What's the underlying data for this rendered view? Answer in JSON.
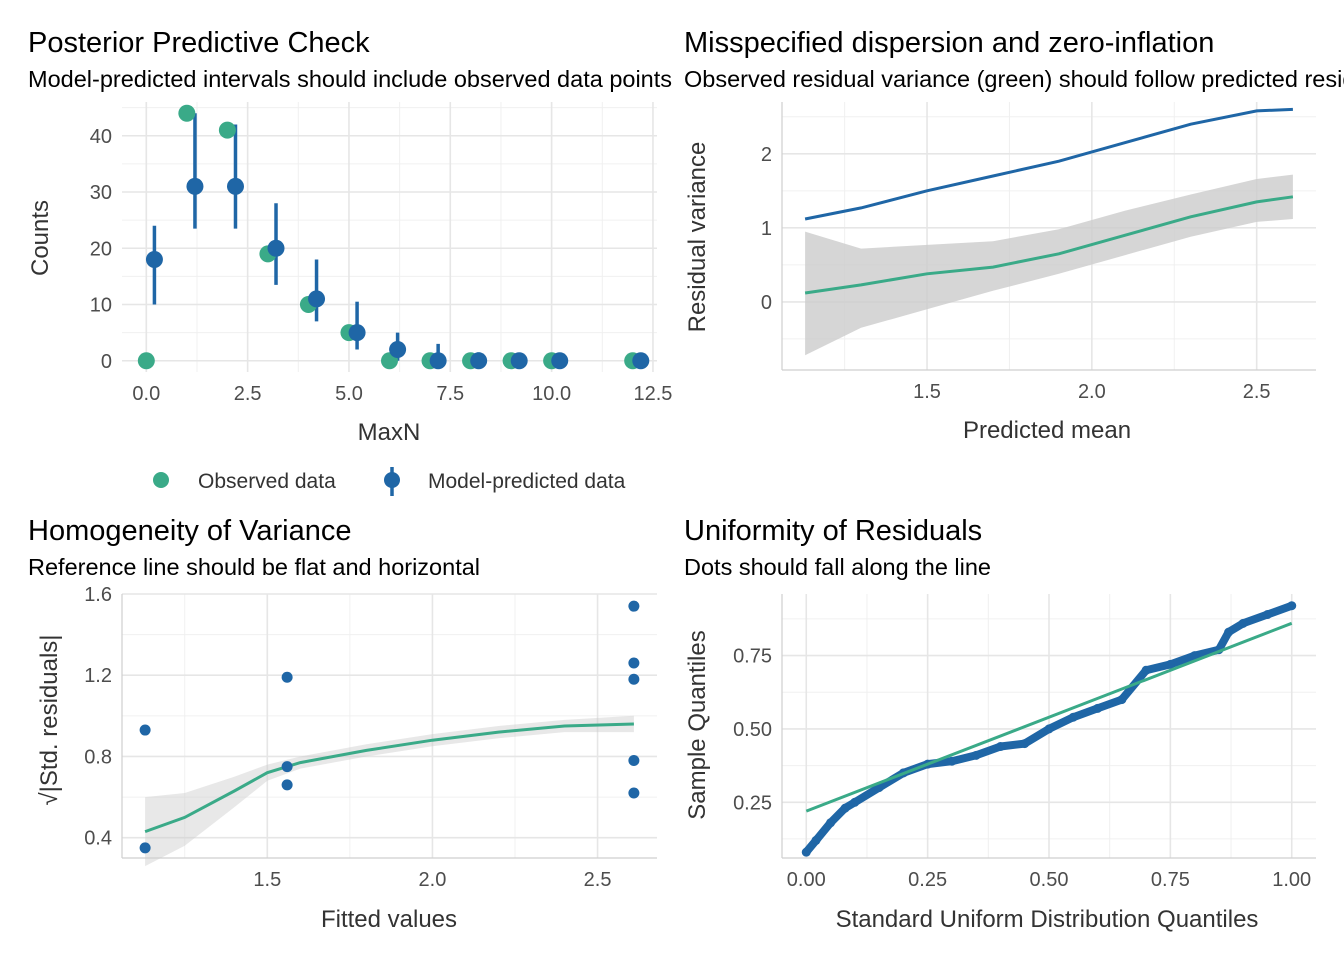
{
  "colors": {
    "observed": "#3aaa88",
    "predicted": "#1f66a6",
    "ci_band": "#cccccc"
  },
  "chart_data": [
    {
      "type": "scatter",
      "panel": "top-left",
      "title": "Posterior Predictive Check",
      "subtitle": "Model-predicted intervals should include observed data points",
      "xlabel": "MaxN",
      "ylabel": "Counts",
      "xlim": [
        -0.6,
        12.6
      ],
      "ylim": [
        -2,
        46
      ],
      "xticks": [
        0,
        2.5,
        5,
        7.5,
        10,
        12.5
      ],
      "xtick_labels": [
        "0.0",
        "2.5",
        "5.0",
        "7.5",
        "10.0",
        "12.5"
      ],
      "yticks": [
        0,
        10,
        20,
        30,
        40
      ],
      "ytick_labels": [
        "0",
        "10",
        "20",
        "30",
        "40"
      ],
      "grid": true,
      "legend": [
        "Observed data",
        "Model-predicted data"
      ],
      "legend_position": "bottom",
      "observed": {
        "name": "Observed data",
        "x": [
          0,
          1,
          2,
          3,
          4,
          5,
          6,
          7,
          8,
          9,
          10,
          12
        ],
        "y": [
          0,
          44,
          41,
          19,
          10,
          5,
          0,
          0,
          0,
          0,
          0,
          0
        ]
      },
      "predicted": {
        "name": "Model-predicted data",
        "x": [
          0.2,
          1.2,
          2.2,
          3.2,
          4.2,
          5.2,
          6.2,
          7.2,
          8.2,
          9.2,
          10.2,
          12.2
        ],
        "y": [
          18,
          31,
          31,
          20,
          11,
          5,
          2,
          0,
          0,
          0,
          0,
          0
        ],
        "lower": [
          10,
          23.5,
          23.5,
          13.5,
          7,
          2,
          0,
          0,
          0,
          0,
          0,
          0
        ],
        "upper": [
          24,
          44,
          42,
          28,
          18,
          10.5,
          5,
          3,
          1.5,
          1,
          1,
          1
        ]
      }
    },
    {
      "type": "line",
      "panel": "top-right",
      "title": "Misspecified dispersion and zero-inflation",
      "subtitle": "Observed residual variance (green) should follow predicted residual variance (blue).",
      "xlabel": "Predicted mean",
      "ylabel": "Residual variance",
      "xlim": [
        1.06,
        2.68
      ],
      "ylim": [
        -0.92,
        2.7
      ],
      "xticks": [
        1.5,
        2.0,
        2.5
      ],
      "xtick_labels": [
        "1.5",
        "2.0",
        "2.5"
      ],
      "yticks": [
        0,
        1,
        2
      ],
      "ytick_labels": [
        "0",
        "1",
        "2"
      ],
      "grid": true,
      "predicted_variance": {
        "x": [
          1.13,
          1.3,
          1.5,
          1.7,
          1.9,
          2.1,
          2.3,
          2.5,
          2.61
        ],
        "y": [
          1.12,
          1.27,
          1.5,
          1.7,
          1.9,
          2.15,
          2.4,
          2.58,
          2.6
        ]
      },
      "observed_variance": {
        "x": [
          1.13,
          1.3,
          1.5,
          1.7,
          1.9,
          2.1,
          2.3,
          2.5,
          2.61
        ],
        "y": [
          0.12,
          0.23,
          0.38,
          0.47,
          0.65,
          0.9,
          1.15,
          1.35,
          1.42
        ]
      },
      "ci_band": {
        "x": [
          1.13,
          1.3,
          1.5,
          1.7,
          1.9,
          2.1,
          2.3,
          2.5,
          2.61
        ],
        "lower": [
          -0.72,
          -0.35,
          -0.1,
          0.15,
          0.38,
          0.63,
          0.88,
          1.08,
          1.12
        ],
        "upper": [
          0.95,
          0.72,
          0.77,
          0.82,
          0.98,
          1.23,
          1.45,
          1.66,
          1.72
        ]
      }
    },
    {
      "type": "scatter",
      "panel": "bottom-left",
      "title": "Homogeneity of Variance",
      "subtitle": "Reference line should be flat and horizontal",
      "xlabel": "Fitted values",
      "ylabel": "√|Std. residuals|",
      "xlim": [
        1.06,
        2.68
      ],
      "ylim": [
        0.3,
        1.6
      ],
      "xticks": [
        1.5,
        2.0,
        2.5
      ],
      "xtick_labels": [
        "1.5",
        "2.0",
        "2.5"
      ],
      "yticks": [
        0.4,
        0.8,
        1.2,
        1.6
      ],
      "ytick_labels": [
        "0.4",
        "0.8",
        "1.2",
        "1.6"
      ],
      "grid": true,
      "points": {
        "x": [
          1.13,
          1.13,
          1.56,
          1.56,
          1.56,
          2.61,
          2.61,
          2.61,
          2.61,
          2.61
        ],
        "y": [
          0.35,
          0.93,
          1.19,
          0.75,
          0.66,
          1.54,
          1.26,
          1.18,
          0.78,
          0.62
        ]
      },
      "smooth": {
        "x": [
          1.13,
          1.25,
          1.4,
          1.5,
          1.6,
          1.8,
          2.0,
          2.2,
          2.4,
          2.61
        ],
        "y": [
          0.43,
          0.5,
          0.63,
          0.72,
          0.77,
          0.83,
          0.88,
          0.92,
          0.95,
          0.96
        ]
      },
      "ci_band": {
        "x": [
          1.13,
          1.25,
          1.4,
          1.5,
          1.6,
          1.8,
          2.0,
          2.2,
          2.4,
          2.61
        ],
        "lower": [
          0.26,
          0.36,
          0.55,
          0.68,
          0.74,
          0.8,
          0.85,
          0.89,
          0.92,
          0.92
        ],
        "upper": [
          0.6,
          0.62,
          0.7,
          0.76,
          0.8,
          0.86,
          0.91,
          0.95,
          0.98,
          1.0
        ]
      }
    },
    {
      "type": "scatter",
      "panel": "bottom-right",
      "title": "Uniformity of Residuals",
      "subtitle": "Dots should fall along the line",
      "xlabel": "Standard Uniform Distribution Quantiles",
      "ylabel": "Sample Quantiles",
      "xlim": [
        -0.05,
        1.05
      ],
      "ylim": [
        0.06,
        0.96
      ],
      "xticks": [
        0,
        0.25,
        0.5,
        0.75,
        1.0
      ],
      "xtick_labels": [
        "0.00",
        "0.25",
        "0.50",
        "0.75",
        "1.00"
      ],
      "yticks": [
        0.25,
        0.5,
        0.75
      ],
      "ytick_labels": [
        "0.25",
        "0.50",
        "0.75"
      ],
      "grid": true,
      "reference_line": {
        "x": [
          0,
          1
        ],
        "y": [
          0.22,
          0.86
        ]
      },
      "qq_curve": {
        "x": [
          0,
          0.02,
          0.05,
          0.08,
          0.1,
          0.15,
          0.2,
          0.25,
          0.3,
          0.35,
          0.4,
          0.45,
          0.5,
          0.55,
          0.6,
          0.65,
          0.7,
          0.75,
          0.8,
          0.85,
          0.87,
          0.9,
          0.95,
          1.0
        ],
        "y": [
          0.08,
          0.12,
          0.18,
          0.23,
          0.25,
          0.3,
          0.35,
          0.38,
          0.39,
          0.41,
          0.44,
          0.45,
          0.5,
          0.54,
          0.57,
          0.6,
          0.7,
          0.72,
          0.75,
          0.77,
          0.83,
          0.86,
          0.89,
          0.92
        ]
      }
    }
  ]
}
